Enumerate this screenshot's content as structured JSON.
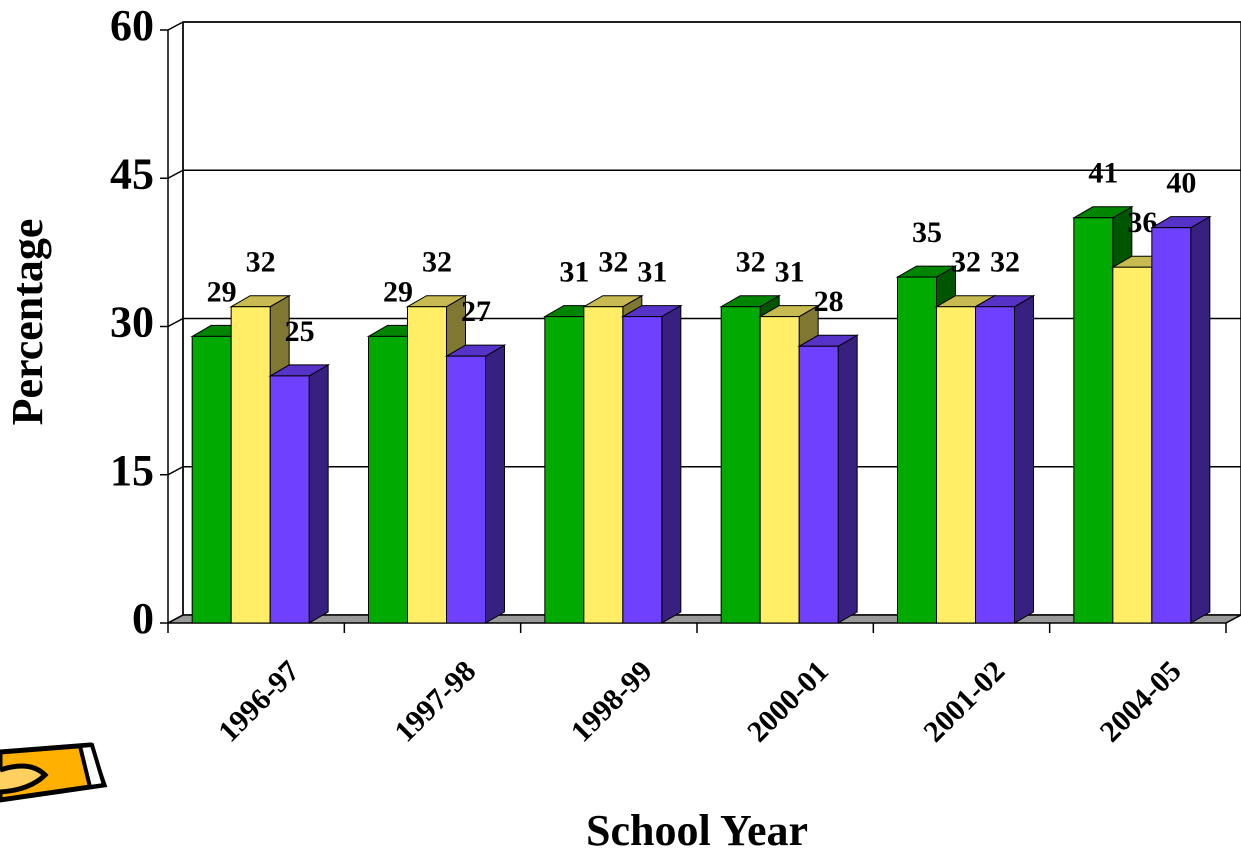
{
  "chart_data": {
    "type": "bar3d",
    "y_label": "Percentage",
    "x_label": "School Year",
    "categories": [
      "1996-97",
      "1997-98",
      "1998-99",
      "2000-01",
      "2001-02",
      "2004-05"
    ],
    "series": [
      {
        "color": "#00aa00",
        "values": [
          29,
          29,
          31,
          32,
          35,
          41
        ]
      },
      {
        "color": "#ffee66",
        "values": [
          32,
          32,
          32,
          31,
          32,
          36
        ]
      },
      {
        "color": "#7040ff",
        "values": [
          25,
          27,
          31,
          28,
          32,
          40
        ]
      }
    ],
    "ylim": [
      0,
      60
    ],
    "yticks": [
      0,
      15,
      30,
      45,
      60
    ],
    "grid": true
  }
}
